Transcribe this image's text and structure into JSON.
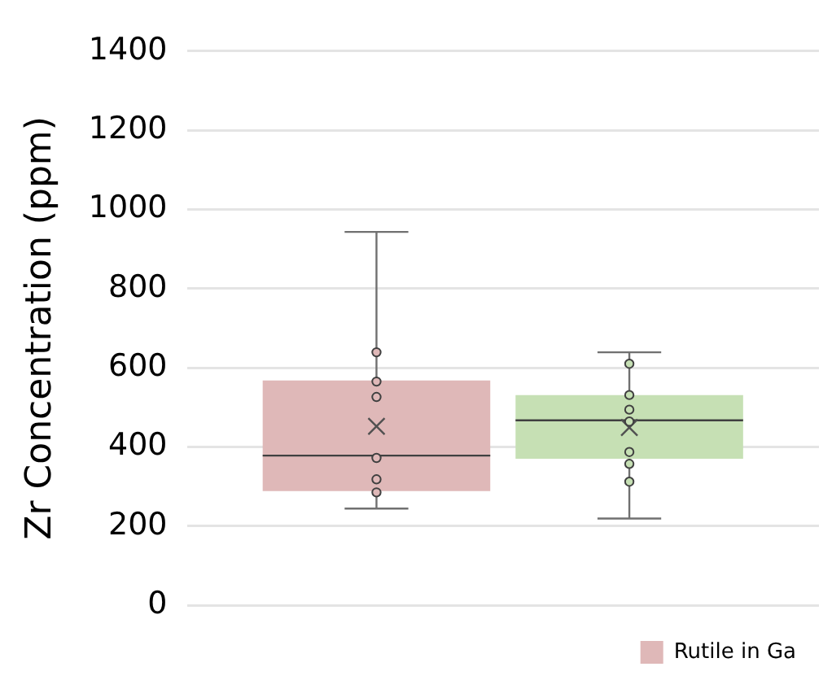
{
  "chart_data": {
    "type": "box",
    "ylabel": "Zr Concentration (ppm)",
    "categories": [
      null
    ],
    "series": [
      {
        "name": "Rutile in Ga",
        "color": "#dfb8b8",
        "boxes": [
          {
            "low": 244,
            "q1": 288,
            "median": 378,
            "q3": 568,
            "high": 943,
            "mean": 452,
            "outliers": [
              639,
              565,
              526,
              372,
              318,
              285
            ]
          }
        ]
      },
      {
        "color": "#c6e0b4",
        "boxes": [
          {
            "low": 219,
            "q1": 370,
            "median": 467,
            "q3": 531,
            "high": 639,
            "mean": 449,
            "outliers": [
              610,
              531,
              494,
              464,
              387,
              357,
              312
            ]
          }
        ]
      }
    ],
    "ylim": [
      0,
      1400
    ],
    "yticks": [
      0,
      200,
      400,
      600,
      800,
      1000,
      1200,
      1400
    ],
    "grid": "y",
    "legend": "bottom right",
    "tick_labels": "y"
  }
}
